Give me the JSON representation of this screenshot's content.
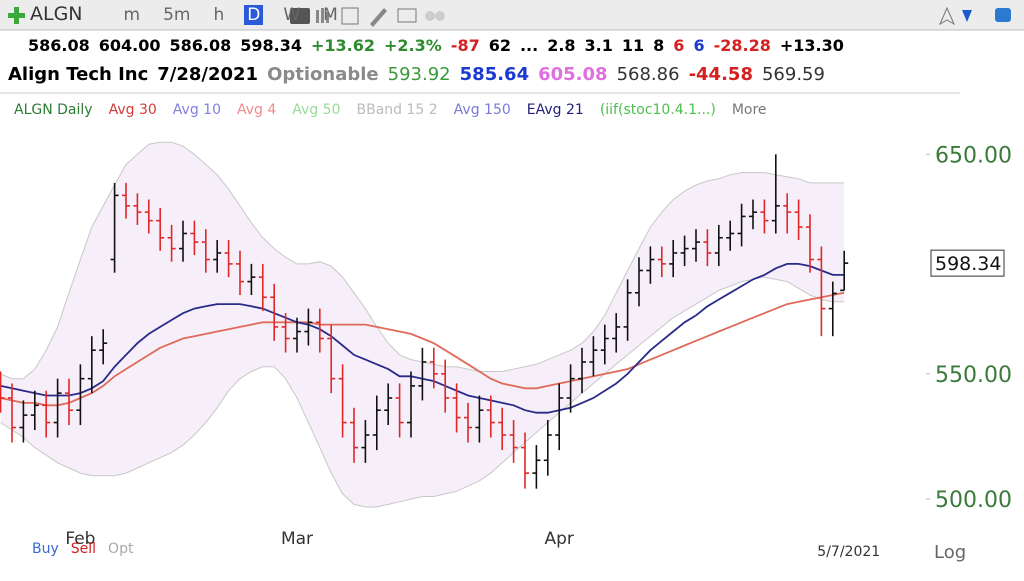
{
  "toolbar": {
    "symbol": "ALGN",
    "intervals": [
      "m",
      "5m",
      "h",
      "D",
      "W",
      "M"
    ],
    "active_interval": 3
  },
  "quote": {
    "row1": [
      {
        "text": "586.08",
        "color": "#000000"
      },
      {
        "text": "604.00",
        "color": "#000000"
      },
      {
        "text": "586.08",
        "color": "#000000"
      },
      {
        "text": "598.34",
        "color": "#000000"
      },
      {
        "text": "+13.62",
        "color": "#2e8b2e"
      },
      {
        "text": "+2.3%",
        "color": "#2e8b2e"
      },
      {
        "text": "-87",
        "color": "#d42020"
      },
      {
        "text": "62",
        "color": "#000000"
      },
      {
        "text": "...",
        "color": "#000000"
      },
      {
        "text": "2.8",
        "color": "#000000"
      },
      {
        "text": "3.1",
        "color": "#000000"
      },
      {
        "text": "11",
        "color": "#000000"
      },
      {
        "text": "8",
        "color": "#000000"
      },
      {
        "text": "6",
        "color": "#d42020"
      },
      {
        "text": "6",
        "color": "#1a3ad0"
      },
      {
        "text": "-28.28",
        "color": "#d42020"
      },
      {
        "text": "+13.30",
        "color": "#000000"
      }
    ],
    "row2": [
      {
        "text": "Align Tech Inc",
        "color": "#000000",
        "bold": true
      },
      {
        "text": "7/28/2021",
        "color": "#000000",
        "bold": true
      },
      {
        "text": "Optionable",
        "color": "#8a8a8a",
        "bold": true
      },
      {
        "text": "593.92",
        "color": "#3a9a3a",
        "bold": false
      },
      {
        "text": "585.64",
        "color": "#1a3ad0",
        "bold": true
      },
      {
        "text": "605.08",
        "color": "#e070e0",
        "bold": true
      },
      {
        "text": "568.86",
        "color": "#333333",
        "bold": false
      },
      {
        "text": "-44.58",
        "color": "#d42020",
        "bold": true
      },
      {
        "text": "569.59",
        "color": "#333333",
        "bold": false
      }
    ]
  },
  "legend": [
    {
      "text": "ALGN Daily",
      "color": "#2e7d32"
    },
    {
      "text": "Avg 30",
      "color": "#d23a3a"
    },
    {
      "text": "Avg 10",
      "color": "#8080e0"
    },
    {
      "text": "Avg 4",
      "color": "#f08a8a"
    },
    {
      "text": "Avg 50",
      "color": "#98dc98"
    },
    {
      "text": "BBand 15 2",
      "color": "#bbbbbb"
    },
    {
      "text": "Avg 150",
      "color": "#7a7ad8"
    },
    {
      "text": "EAvg 21",
      "color": "#22227a"
    },
    {
      "text": "(iif(stoc10.4.1...)",
      "color": "#4cc04c"
    },
    {
      "text": "More",
      "color": "#777777"
    }
  ],
  "bottom_buttons": [
    {
      "text": "Buy",
      "color": "#3a6ad0"
    },
    {
      "text": "Sell",
      "color": "#d42020"
    },
    {
      "text": "Opt",
      "color": "#aaaaaa"
    }
  ],
  "log_button": "Log",
  "chart_data": {
    "type": "ohlc",
    "categories": [
      null,
      null,
      null,
      null,
      null,
      null,
      null,
      "Feb",
      null,
      null,
      null,
      null,
      null,
      null,
      null,
      null,
      null,
      null,
      null,
      null,
      null,
      null,
      null,
      null,
      null,
      null,
      "Mar",
      null,
      null,
      null,
      null,
      null,
      null,
      null,
      null,
      null,
      null,
      null,
      null,
      null,
      null,
      null,
      null,
      null,
      null,
      null,
      null,
      null,
      null,
      "Apr",
      null,
      null,
      null,
      null,
      null,
      null,
      null,
      null,
      null,
      null,
      null,
      null,
      null,
      null,
      null,
      null,
      null,
      null,
      null,
      null,
      null,
      null,
      null,
      null,
      "5/7/2021"
    ],
    "open": [
      545,
      540,
      528,
      533,
      537,
      530,
      542,
      535,
      548,
      560,
      600,
      630,
      625,
      622,
      618,
      610,
      605,
      612,
      608,
      600,
      603,
      598,
      590,
      592,
      583,
      570,
      565,
      568,
      572,
      565,
      548,
      530,
      520,
      525,
      535,
      540,
      530,
      545,
      555,
      550,
      540,
      532,
      528,
      535,
      530,
      525,
      520,
      510,
      515,
      525,
      540,
      548,
      555,
      560,
      565,
      570,
      585,
      595,
      600,
      598,
      603,
      605,
      608,
      603,
      610,
      612,
      620,
      622,
      618,
      625,
      622,
      615,
      600,
      578,
      586.08
    ],
    "high": [
      551,
      546,
      539,
      543,
      543,
      548,
      548,
      554,
      566,
      569,
      636,
      636,
      631,
      628,
      624,
      616,
      618,
      618,
      614,
      609,
      609,
      604,
      598,
      598,
      589,
      576,
      574,
      578,
      578,
      571,
      554,
      536,
      531,
      541,
      546,
      546,
      551,
      561,
      561,
      556,
      546,
      538,
      541,
      541,
      536,
      531,
      526,
      521,
      531,
      546,
      554,
      561,
      566,
      571,
      576,
      591,
      601,
      606,
      606,
      609,
      611,
      614,
      614,
      616,
      618,
      626,
      628,
      628,
      650,
      631,
      628,
      621,
      606,
      590,
      604.0
    ],
    "low": [
      534,
      522,
      522,
      527,
      524,
      524,
      529,
      529,
      542,
      554,
      594,
      619,
      616,
      612,
      604,
      599,
      599,
      602,
      594,
      594,
      592,
      584,
      584,
      577,
      564,
      559,
      559,
      562,
      559,
      542,
      524,
      514,
      514,
      519,
      529,
      524,
      524,
      539,
      544,
      534,
      526,
      522,
      522,
      524,
      519,
      514,
      504,
      504,
      509,
      519,
      534,
      542,
      549,
      554,
      559,
      564,
      579,
      589,
      592,
      592,
      597,
      599,
      597,
      597,
      604,
      606,
      614,
      612,
      612,
      612,
      609,
      594,
      566,
      566,
      586.08
    ],
    "close": [
      540,
      528,
      533,
      537,
      530,
      542,
      535,
      548,
      560,
      563,
      630,
      625,
      622,
      618,
      610,
      605,
      612,
      608,
      600,
      603,
      598,
      590,
      592,
      583,
      570,
      565,
      568,
      572,
      565,
      548,
      530,
      520,
      525,
      535,
      540,
      530,
      545,
      555,
      550,
      540,
      532,
      528,
      535,
      530,
      525,
      520,
      510,
      515,
      525,
      540,
      548,
      555,
      560,
      565,
      570,
      585,
      595,
      600,
      598,
      603,
      605,
      608,
      603,
      610,
      612,
      620,
      622,
      618,
      625,
      622,
      615,
      600,
      578,
      584.72,
      598.34
    ],
    "up_color": "#111111",
    "down_color": "#e02828",
    "band": {
      "color": "#f6eef8",
      "stroke": "#c8c8c8",
      "upper": [
        550,
        548,
        548,
        552,
        560,
        570,
        585,
        600,
        615,
        625,
        635,
        645,
        650,
        655,
        656,
        656,
        654,
        650,
        645,
        640,
        633,
        625,
        617,
        610,
        605,
        601,
        598,
        598,
        599,
        597,
        592,
        585,
        578,
        570,
        563,
        558,
        556,
        555,
        554,
        553,
        553,
        552,
        551,
        551,
        551,
        552,
        553,
        554,
        556,
        558,
        560,
        563,
        568,
        575,
        585,
        595,
        605,
        615,
        622,
        628,
        632,
        635,
        637,
        638,
        640,
        641,
        641,
        641,
        640,
        639,
        638,
        636,
        636,
        636,
        636
      ],
      "lower": [
        530,
        527,
        524,
        520,
        517,
        514,
        512,
        510,
        509,
        509,
        509,
        510,
        512,
        514,
        516,
        518,
        521,
        525,
        530,
        536,
        543,
        548,
        551,
        553,
        553,
        548,
        540,
        530,
        520,
        510,
        502,
        498,
        497,
        497,
        498,
        499,
        500,
        501,
        501,
        502,
        503,
        505,
        507,
        510,
        514,
        518,
        522,
        526,
        530,
        534,
        538,
        542,
        546,
        550,
        554,
        558,
        562,
        566,
        570,
        574,
        577,
        580,
        583,
        586,
        588,
        590,
        591,
        592,
        591,
        590,
        587,
        584,
        582,
        581,
        581
      ]
    },
    "series": [
      {
        "color": "#e06a5a",
        "values": [
          540,
          539,
          538,
          538,
          537,
          537,
          538,
          540,
          542,
          545,
          549,
          552,
          555,
          558,
          561,
          563,
          565,
          566,
          567,
          568,
          569,
          570,
          571,
          572,
          572,
          572,
          572,
          572,
          571,
          571,
          571,
          571,
          571,
          570,
          569,
          568,
          567,
          565,
          563,
          560,
          557,
          554,
          551,
          548,
          546,
          545,
          544,
          544,
          545,
          546,
          547,
          548,
          549,
          550,
          551,
          552,
          554,
          556,
          558,
          560,
          562,
          564,
          566,
          568,
          570,
          572,
          574,
          576,
          578,
          580,
          581,
          582,
          583,
          584,
          585
        ]
      },
      {
        "color": "#2a2a8a",
        "values": [
          545,
          544,
          543,
          542,
          541,
          541,
          541,
          542,
          544,
          547,
          553,
          558,
          563,
          567,
          570,
          573,
          576,
          578,
          579,
          580,
          580,
          580,
          579,
          578,
          576,
          574,
          572,
          571,
          569,
          566,
          562,
          558,
          556,
          554,
          552,
          549,
          549,
          548,
          547,
          545,
          543,
          541,
          540,
          539,
          538,
          537,
          535,
          534,
          534,
          535,
          536,
          538,
          540,
          543,
          546,
          550,
          555,
          560,
          564,
          568,
          572,
          575,
          579,
          582,
          585,
          588,
          591,
          593,
          596,
          598,
          598,
          597,
          595,
          593,
          593
        ]
      }
    ],
    "ylim": [
      494,
      680
    ],
    "log_scale": true,
    "tick_color": "#3a7a3a",
    "yticks": [
      {
        "value": 500,
        "label": "500.00"
      },
      {
        "value": 550,
        "label": "550.00"
      },
      {
        "value": 650,
        "label": "650.00"
      }
    ],
    "last_price": 598.34
  }
}
